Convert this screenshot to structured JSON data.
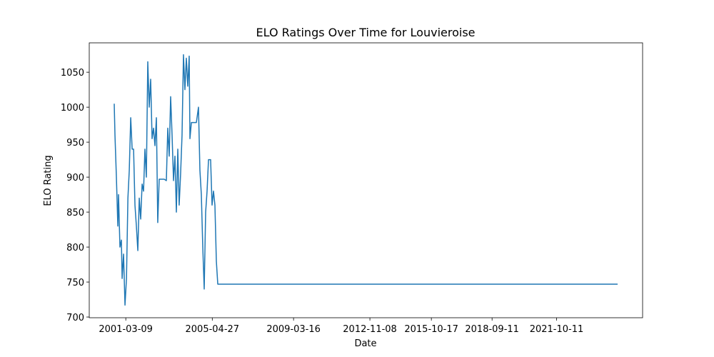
{
  "chart_data": {
    "type": "line",
    "title": "ELO Ratings Over Time for Louvieroise",
    "x_label": "Date",
    "y_label": "ELO Rating",
    "x": [
      "2000-08-19",
      "2000-09-01",
      "2000-09-26",
      "2000-10-21",
      "2000-11-02",
      "2000-11-27",
      "2000-12-22",
      "2001-01-04",
      "2001-01-29",
      "2001-02-23",
      "2001-03-21",
      "2001-04-15",
      "2001-05-09",
      "2001-06-03",
      "2001-06-28",
      "2001-07-23",
      "2001-08-16",
      "2001-09-10",
      "2001-10-05",
      "2001-10-30",
      "2001-11-24",
      "2001-12-19",
      "2002-01-13",
      "2002-02-06",
      "2002-03-03",
      "2002-03-28",
      "2002-04-22",
      "2002-05-17",
      "2002-06-11",
      "2002-07-06",
      "2002-07-31",
      "2002-08-25",
      "2002-09-18",
      "2002-10-13",
      "2003-01-09",
      "2003-02-15",
      "2003-03-12",
      "2003-04-06",
      "2003-05-01",
      "2003-05-26",
      "2003-06-20",
      "2003-07-15",
      "2003-08-09",
      "2003-09-03",
      "2003-09-27",
      "2003-10-22",
      "2003-11-16",
      "2003-12-11",
      "2004-01-05",
      "2004-01-30",
      "2004-02-24",
      "2004-03-20",
      "2004-04-02",
      "2004-04-27",
      "2004-07-23",
      "2004-08-29",
      "2004-09-23",
      "2004-10-18",
      "2004-11-12",
      "2004-12-07",
      "2005-01-01",
      "2005-01-26",
      "2005-02-20",
      "2005-03-29",
      "2005-04-23",
      "2005-05-18",
      "2005-06-12",
      "2005-07-07",
      "2005-08-01",
      "2024-09-11"
    ],
    "series": [
      {
        "name": "Louvieroise",
        "color": "#1f77b4",
        "values": [
          1005,
          960,
          900,
          830,
          875,
          800,
          810,
          755,
          790,
          717,
          755,
          870,
          910,
          985,
          940,
          940,
          860,
          830,
          795,
          870,
          840,
          890,
          880,
          940,
          900,
          1065,
          1000,
          1040,
          955,
          970,
          945,
          985,
          835,
          897,
          897,
          895,
          970,
          930,
          1015,
          960,
          895,
          930,
          850,
          940,
          860,
          905,
          960,
          1075,
          1025,
          1070,
          1030,
          1073,
          955,
          978,
          978,
          1000,
          910,
          875,
          800,
          740,
          850,
          880,
          925,
          925,
          860,
          880,
          860,
          780,
          747,
          747
        ]
      }
    ],
    "xlim": [
      "1999-06-10",
      "2025-11-21"
    ],
    "xticks": [
      "2001-03-09",
      "2005-04-27",
      "2009-03-16",
      "2012-11-08",
      "2015-10-17",
      "2018-09-11",
      "2021-10-11"
    ],
    "ylim": [
      699,
      1092
    ],
    "yticks": [
      700,
      750,
      800,
      850,
      900,
      950,
      1000,
      1050
    ]
  }
}
